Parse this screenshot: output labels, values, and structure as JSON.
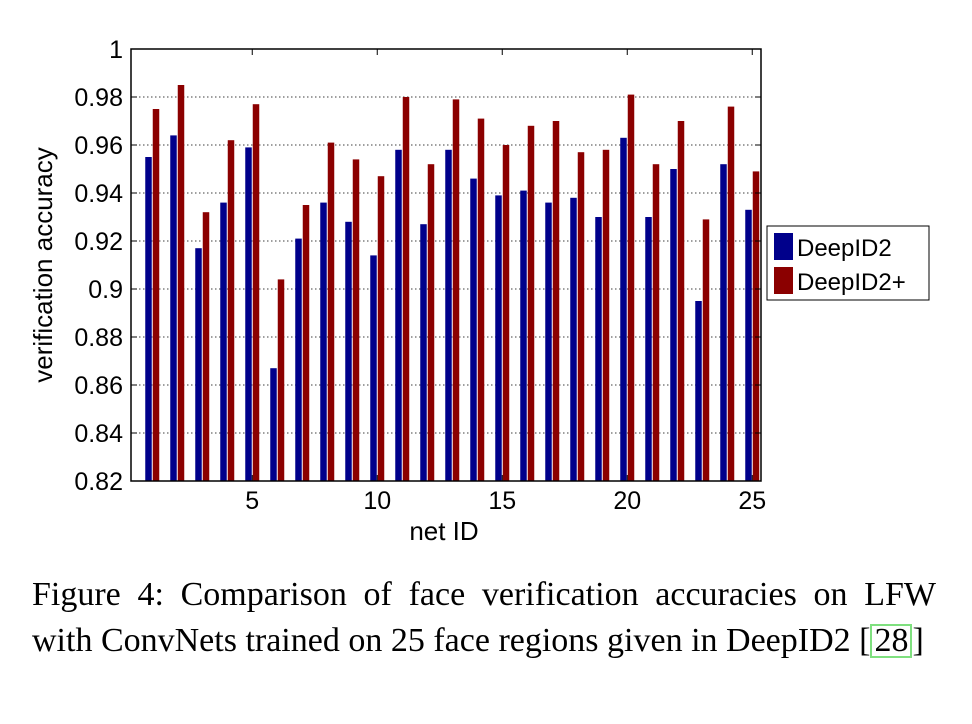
{
  "chart_data": {
    "type": "bar",
    "xlabel": "net ID",
    "ylabel": "verification accuracy",
    "ylim": [
      0.82,
      1.0
    ],
    "yticks": [
      0.82,
      0.84,
      0.86,
      0.88,
      0.9,
      0.92,
      0.94,
      0.96,
      0.98,
      1
    ],
    "ytick_labels": [
      "0.82",
      "0.84",
      "0.86",
      "0.88",
      "0.9",
      "0.92",
      "0.94",
      "0.96",
      "0.98",
      "1"
    ],
    "xtick_labels": [
      "5",
      "10",
      "15",
      "20",
      "25"
    ],
    "xticks": [
      5,
      10,
      15,
      20,
      25
    ],
    "categories": [
      1,
      2,
      3,
      4,
      5,
      6,
      7,
      8,
      9,
      10,
      11,
      12,
      13,
      14,
      15,
      16,
      17,
      18,
      19,
      20,
      21,
      22,
      23,
      24,
      25
    ],
    "grid": "horizontal dotted",
    "legend_position": "right",
    "series": [
      {
        "name": "DeepID2",
        "color": "#00008b",
        "values": [
          0.955,
          0.964,
          0.917,
          0.936,
          0.959,
          0.867,
          0.921,
          0.936,
          0.928,
          0.914,
          0.958,
          0.927,
          0.958,
          0.946,
          0.939,
          0.941,
          0.936,
          0.938,
          0.93,
          0.963,
          0.93,
          0.95,
          0.895,
          0.952,
          0.933
        ]
      },
      {
        "name": "DeepID2+",
        "color": "#8b0000",
        "values": [
          0.975,
          0.985,
          0.932,
          0.962,
          0.977,
          0.904,
          0.935,
          0.961,
          0.954,
          0.947,
          0.98,
          0.952,
          0.979,
          0.971,
          0.96,
          0.968,
          0.97,
          0.957,
          0.958,
          0.981,
          0.952,
          0.97,
          0.929,
          0.976,
          0.949
        ]
      }
    ]
  },
  "caption": {
    "text": "Figure 4:  Comparison of face verification accuracies on LFW with ConvNets trained on 25 face regions given in DeepID2 ",
    "open_bracket": "[",
    "ref": "28",
    "close_bracket": "]"
  }
}
